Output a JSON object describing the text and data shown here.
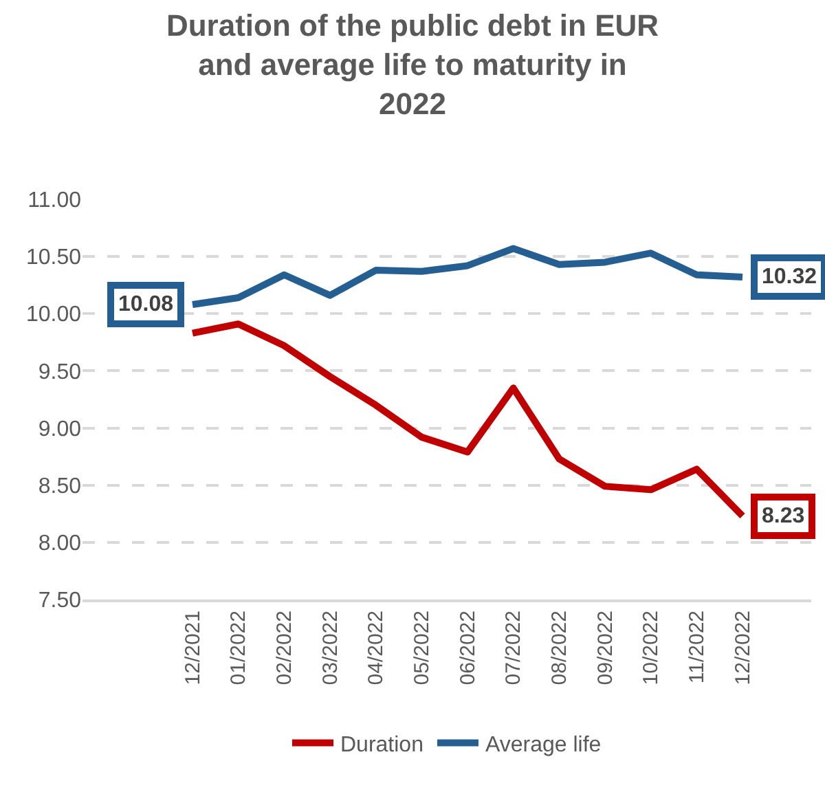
{
  "chart_data": {
    "type": "line",
    "title": "Duration of the public debt in EUR and average life to maturity in 2022",
    "categories": [
      "12/2021",
      "01/2022",
      "02/2022",
      "03/2022",
      "04/2022",
      "05/2022",
      "06/2022",
      "07/2022",
      "08/2022",
      "09/2022",
      "10/2022",
      "11/2022",
      "12/2022"
    ],
    "series": [
      {
        "name": "Duration",
        "color": "#c00000",
        "values": [
          9.83,
          9.91,
          9.72,
          9.45,
          9.2,
          8.92,
          8.79,
          9.35,
          8.73,
          8.49,
          8.46,
          8.64,
          8.23
        ],
        "value_labels": [
          null,
          null,
          null,
          null,
          null,
          null,
          null,
          null,
          null,
          null,
          null,
          null,
          "8.23"
        ]
      },
      {
        "name": "Average life",
        "color": "#255e91",
        "values": [
          10.08,
          10.14,
          10.34,
          10.16,
          10.38,
          10.37,
          10.42,
          10.57,
          10.43,
          10.45,
          10.53,
          10.34,
          10.32
        ],
        "value_labels": [
          "10.08",
          null,
          null,
          null,
          null,
          null,
          null,
          null,
          null,
          null,
          null,
          null,
          "10.32"
        ]
      }
    ],
    "ylim": [
      7.5,
      11.0
    ],
    "yticks": [
      {
        "value": 7.5,
        "label": "7.50"
      },
      {
        "value": 8.0,
        "label": "8.00"
      },
      {
        "value": 8.5,
        "label": "8.50"
      },
      {
        "value": 9.0,
        "label": "9.00"
      },
      {
        "value": 9.5,
        "label": "9.50"
      },
      {
        "value": 10.0,
        "label": "10.00"
      },
      {
        "value": 10.5,
        "label": "10.50"
      },
      {
        "value": 11.0,
        "label": "11.00"
      }
    ],
    "grid": "y",
    "legend": "bottom",
    "marker": "none",
    "line_style": "solid"
  }
}
